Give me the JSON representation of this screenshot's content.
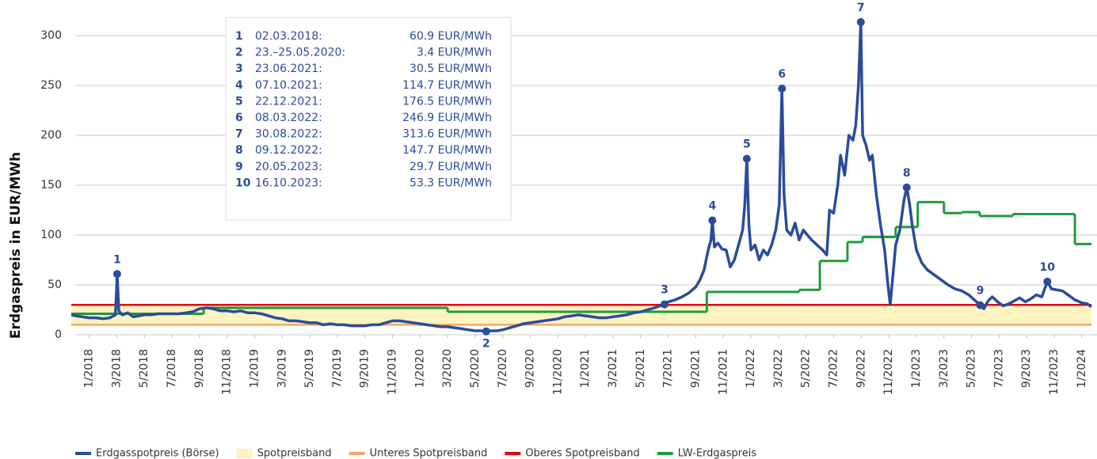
{
  "chart_data": {
    "type": "line",
    "ylabel": "Erdgaspreis in EUR/MWh",
    "xlim": [
      -1.3,
      72.7
    ],
    "ylim": [
      0,
      320
    ],
    "yticks": [
      0,
      50,
      100,
      150,
      200,
      250,
      300
    ],
    "grid": true,
    "legend": "bottom",
    "xticks": [
      {
        "value": 0,
        "label": "1/2018"
      },
      {
        "value": 2,
        "label": "3/2018"
      },
      {
        "value": 4,
        "label": "5/2018"
      },
      {
        "value": 6,
        "label": "7/2018"
      },
      {
        "value": 8,
        "label": "9/2018"
      },
      {
        "value": 10,
        "label": "11/2018"
      },
      {
        "value": 12,
        "label": "1/2019"
      },
      {
        "value": 14,
        "label": "3/2019"
      },
      {
        "value": 16,
        "label": "5/2019"
      },
      {
        "value": 18,
        "label": "7/2019"
      },
      {
        "value": 20,
        "label": "9/2019"
      },
      {
        "value": 22,
        "label": "11/2019"
      },
      {
        "value": 24,
        "label": "1/2020"
      },
      {
        "value": 26,
        "label": "3/2020"
      },
      {
        "value": 28,
        "label": "5/2020"
      },
      {
        "value": 30,
        "label": "7/2020"
      },
      {
        "value": 32,
        "label": "9/2020"
      },
      {
        "value": 34,
        "label": "11/2020"
      },
      {
        "value": 36,
        "label": "1/2021"
      },
      {
        "value": 38,
        "label": "3/2021"
      },
      {
        "value": 40,
        "label": "5/2021"
      },
      {
        "value": 42,
        "label": "7/2021"
      },
      {
        "value": 44,
        "label": "9/2021"
      },
      {
        "value": 46,
        "label": "11/2021"
      },
      {
        "value": 48,
        "label": "1/2022"
      },
      {
        "value": 50,
        "label": "3/2022"
      },
      {
        "value": 52,
        "label": "5/2022"
      },
      {
        "value": 54,
        "label": "7/2022"
      },
      {
        "value": 56,
        "label": "9/2022"
      },
      {
        "value": 58,
        "label": "11/2022"
      },
      {
        "value": 60,
        "label": "1/2023"
      },
      {
        "value": 62,
        "label": "3/2023"
      },
      {
        "value": 64,
        "label": "5/2023"
      },
      {
        "value": 66,
        "label": "7/2023"
      },
      {
        "value": 68,
        "label": "9/2023"
      },
      {
        "value": 70,
        "label": "11/2023"
      },
      {
        "value": 72,
        "label": "1/2024"
      }
    ],
    "series": [
      {
        "name": "Erdgasspotpreis (Börse)",
        "color": "#2b4c9b",
        "style": "line",
        "x": [
          -1.3,
          -1,
          -0.5,
          0,
          0.5,
          1,
          1.5,
          1.9,
          2.03,
          2.15,
          2.4,
          2.8,
          3.2,
          3.6,
          4,
          4.5,
          5,
          5.5,
          6,
          6.5,
          7,
          7.5,
          8,
          8.5,
          9,
          9.5,
          10,
          10.5,
          11,
          11.5,
          12,
          12.5,
          13,
          13.5,
          14,
          14.5,
          15,
          15.5,
          16,
          16.5,
          17,
          17.5,
          18,
          18.5,
          19,
          19.5,
          20,
          20.5,
          21,
          21.5,
          22,
          22.5,
          23,
          23.5,
          24,
          24.5,
          25,
          25.5,
          26,
          26.5,
          27,
          27.5,
          28,
          28.5,
          28.8,
          29.2,
          29.6,
          30,
          30.5,
          31,
          31.5,
          32,
          32.5,
          33,
          33.5,
          34,
          34.5,
          35,
          35.5,
          36,
          36.5,
          37,
          37.5,
          38,
          38.5,
          39,
          39.5,
          40,
          40.5,
          41,
          41.4,
          41.73,
          42,
          42.5,
          43,
          43.5,
          44,
          44.3,
          44.6,
          44.9,
          45.1,
          45.2,
          45.35,
          45.6,
          45.9,
          46.2,
          46.5,
          46.8,
          47.1,
          47.4,
          47.55,
          47.7,
          47.85,
          48,
          48.3,
          48.6,
          48.9,
          49.2,
          49.5,
          49.8,
          50.05,
          50.25,
          50.4,
          50.6,
          50.9,
          51.2,
          51.5,
          51.8,
          52.1,
          52.4,
          52.8,
          53.2,
          53.5,
          53.7,
          54,
          54.3,
          54.5,
          54.8,
          55.1,
          55.4,
          55.6,
          55.8,
          55.97,
          56.1,
          56.35,
          56.6,
          56.8,
          57.1,
          57.4,
          57.7,
          57.9,
          58.1,
          58.3,
          58.5,
          58.8,
          59.1,
          59.3,
          59.5,
          59.7,
          60,
          60.4,
          60.8,
          61.3,
          61.8,
          62.3,
          62.8,
          63.3,
          63.8,
          64.2,
          64.63,
          64.9,
          65.2,
          65.5,
          65.9,
          66.3,
          66.7,
          67.1,
          67.5,
          67.9,
          68.3,
          68.7,
          69.1,
          69.5,
          69.8,
          70.2,
          70.6,
          71,
          71.5,
          72,
          72.4,
          72.7
        ],
        "values": [
          20,
          19,
          18,
          17,
          17,
          16,
          17,
          20,
          60.9,
          24,
          20,
          22,
          18,
          19,
          20,
          20,
          21,
          21,
          21,
          21,
          22,
          23,
          26,
          27,
          26,
          24,
          24,
          23,
          24,
          22,
          22,
          21,
          19,
          17,
          16,
          14,
          14,
          13,
          12,
          12,
          10,
          11,
          10,
          10,
          9,
          9,
          9,
          10,
          10,
          12,
          14,
          14,
          13,
          12,
          11,
          10,
          9,
          8,
          8,
          7,
          6,
          5,
          4,
          4,
          3.4,
          4,
          4,
          5,
          7,
          9,
          11,
          12,
          13,
          14,
          15,
          16,
          18,
          19,
          20,
          19,
          18,
          17,
          17,
          18,
          19,
          20,
          22,
          23,
          25,
          27,
          29,
          30.5,
          33,
          35,
          38,
          42,
          48,
          55,
          65,
          85,
          95,
          114.7,
          88,
          92,
          86,
          85,
          68,
          75,
          90,
          105,
          130,
          176.5,
          110,
          85,
          90,
          75,
          85,
          80,
          90,
          105,
          130,
          246.9,
          140,
          105,
          100,
          112,
          95,
          105,
          100,
          95,
          90,
          85,
          80,
          125,
          122,
          150,
          180,
          160,
          200,
          195,
          210,
          250,
          313.6,
          200,
          190,
          175,
          180,
          140,
          110,
          85,
          55,
          30,
          60,
          90,
          105,
          135,
          147.7,
          132,
          110,
          85,
          72,
          65,
          60,
          55,
          50,
          46,
          44,
          40,
          35,
          29.7,
          26,
          34,
          38,
          33,
          29,
          31,
          34,
          37,
          33,
          36,
          40,
          38,
          53.3,
          46,
          45,
          44,
          40,
          35,
          32,
          31,
          28
        ]
      },
      {
        "name": "Spotpreisband",
        "color": "#fdf4bf",
        "style": "band"
      },
      {
        "name": "Unteres Spotpreisband",
        "color": "#f4a66c",
        "style": "line",
        "x": [
          -1.3,
          72.7
        ],
        "values": [
          10,
          10
        ]
      },
      {
        "name": "Oberes Spotpreisband",
        "color": "#e30613",
        "style": "line",
        "x": [
          -1.3,
          72.7
        ],
        "values": [
          30,
          30
        ]
      },
      {
        "name": "LW-Erdgaspreis",
        "color": "#1f9a3e",
        "style": "step",
        "x": [
          -1.3,
          8.3,
          26,
          44.8,
          51.5,
          53,
          55,
          56.1,
          58.5,
          60.1,
          62,
          63.3,
          64.6,
          67,
          71.5,
          72.7
        ],
        "values": [
          21,
          27,
          23,
          43,
          45,
          74,
          93,
          98,
          108,
          133,
          122,
          123,
          119,
          121,
          91,
          91
        ]
      }
    ],
    "annotations": [
      {
        "label": "1",
        "date": "02.03.2018:",
        "text": "60.9 EUR/MWh",
        "point": 8
      },
      {
        "label": "2",
        "date": "23.–25.05.2020:",
        "text": "3.4 EUR/MWh",
        "point": 64,
        "label_position": "below"
      },
      {
        "label": "3",
        "date": "23.06.2021:",
        "text": "30.5 EUR/MWh",
        "point": 91
      },
      {
        "label": "4",
        "date": "07.10.2021:",
        "text": "114.7 EUR/MWh",
        "point": 101
      },
      {
        "label": "5",
        "date": "22.12.2021:",
        "text": "176.5 EUR/MWh",
        "point": 111
      },
      {
        "label": "6",
        "date": "08.03.2022:",
        "text": "246.9 EUR/MWh",
        "point": 121
      },
      {
        "label": "7",
        "date": "30.08.2022:",
        "text": "313.6 EUR/MWh",
        "point": 142
      },
      {
        "label": "8",
        "date": "09.12.2022:",
        "text": "147.7 EUR/MWh",
        "point": 156
      },
      {
        "label": "9",
        "date": "20.05.2023:",
        "text": "29.7 EUR/MWh",
        "point": 169
      },
      {
        "label": "10",
        "date": "16.10.2023:",
        "text": "53.3 EUR/MWh",
        "point": 182
      }
    ]
  }
}
